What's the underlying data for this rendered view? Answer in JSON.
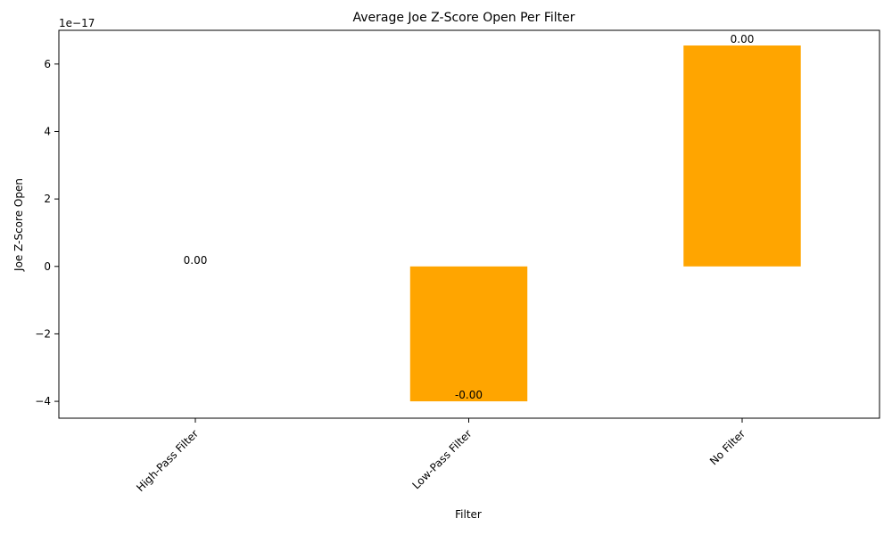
{
  "chart_data": {
    "type": "bar",
    "title": "Average Joe Z-Score Open Per Filter",
    "xlabel": "Filter",
    "ylabel": "Joe Z-Score Open",
    "offset_label": "1e−17",
    "categories": [
      "High-Pass Filter",
      "Low-Pass Filter",
      "No Filter"
    ],
    "values": [
      0,
      -4e-17,
      6.55e-17
    ],
    "value_labels": [
      "0.00",
      "-0.00",
      "0.00"
    ],
    "ylim": [
      -4.5e-17,
      7e-17
    ],
    "yticks": [
      -4e-17,
      -2e-17,
      0,
      2e-17,
      4e-17,
      6e-17
    ],
    "ytick_labels": [
      "−4",
      "−2",
      "0",
      "2",
      "4",
      "6"
    ],
    "bar_color": "#FFA500",
    "grid": false,
    "legend": "none"
  }
}
